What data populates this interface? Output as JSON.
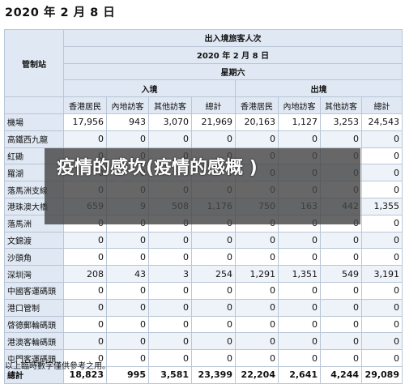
{
  "heading": "2020 年 2 月 8 日",
  "table": {
    "control_point_header": "管制站",
    "title": "出入境旅客人次",
    "date": "2020 年 2 月 8 日",
    "weekday": "星期六",
    "arrival": "入境",
    "departure": "出境",
    "sub_headers": [
      "香港居民",
      "內地訪客",
      "其他訪客",
      "總計",
      "香港居民",
      "內地訪客",
      "其他訪客",
      "總計"
    ],
    "rows": [
      {
        "name": "機場",
        "values": [
          "17,956",
          "943",
          "3,070",
          "21,969",
          "20,163",
          "1,127",
          "3,253",
          "24,543"
        ]
      },
      {
        "name": "高鐵西九龍",
        "values": [
          "0",
          "0",
          "0",
          "0",
          "0",
          "0",
          "0",
          "0"
        ]
      },
      {
        "name": "紅磡",
        "values": [
          "0",
          "0",
          "0",
          "0",
          "0",
          "0",
          "0",
          "0"
        ]
      },
      {
        "name": "羅湖",
        "values": [
          "0",
          "0",
          "0",
          "0",
          "0",
          "0",
          "0",
          "0"
        ]
      },
      {
        "name": "落馬洲支線",
        "values": [
          "0",
          "0",
          "0",
          "0",
          "0",
          "0",
          "0",
          "0"
        ]
      },
      {
        "name": "港珠澳大橋",
        "values": [
          "659",
          "9",
          "508",
          "1,176",
          "750",
          "163",
          "442",
          "1,355"
        ]
      },
      {
        "name": "落馬洲",
        "values": [
          "0",
          "0",
          "0",
          "0",
          "0",
          "0",
          "0",
          "0"
        ]
      },
      {
        "name": "文錦渡",
        "values": [
          "0",
          "0",
          "0",
          "0",
          "0",
          "0",
          "0",
          "0"
        ]
      },
      {
        "name": "沙頭角",
        "values": [
          "0",
          "0",
          "0",
          "0",
          "0",
          "0",
          "0",
          "0"
        ]
      },
      {
        "name": "深圳灣",
        "values": [
          "208",
          "43",
          "3",
          "254",
          "1,291",
          "1,351",
          "549",
          "3,191"
        ]
      },
      {
        "name": "中國客運碼頭",
        "values": [
          "0",
          "0",
          "0",
          "0",
          "0",
          "0",
          "0",
          "0"
        ]
      },
      {
        "name": "港口管制",
        "values": [
          "0",
          "0",
          "0",
          "0",
          "0",
          "0",
          "0",
          "0"
        ]
      },
      {
        "name": "啓德郵輪碼頭",
        "values": [
          "0",
          "0",
          "0",
          "0",
          "0",
          "0",
          "0",
          "0"
        ]
      },
      {
        "name": "港澳客輪碼頭",
        "values": [
          "0",
          "0",
          "0",
          "0",
          "0",
          "0",
          "0",
          "0"
        ]
      },
      {
        "name": "屯門客運碼頭",
        "values": [
          "0",
          "0",
          "0",
          "0",
          "0",
          "0",
          "0",
          "0"
        ]
      }
    ],
    "total": {
      "name": "總計",
      "values": [
        "18,823",
        "995",
        "3,581",
        "23,399",
        "22,204",
        "2,641",
        "4,244",
        "29,089"
      ]
    }
  },
  "footnote": "以上臨時數字僅供參考之用。",
  "overlay": {
    "text": "疫情的感坎(疫情的感概 )"
  }
}
